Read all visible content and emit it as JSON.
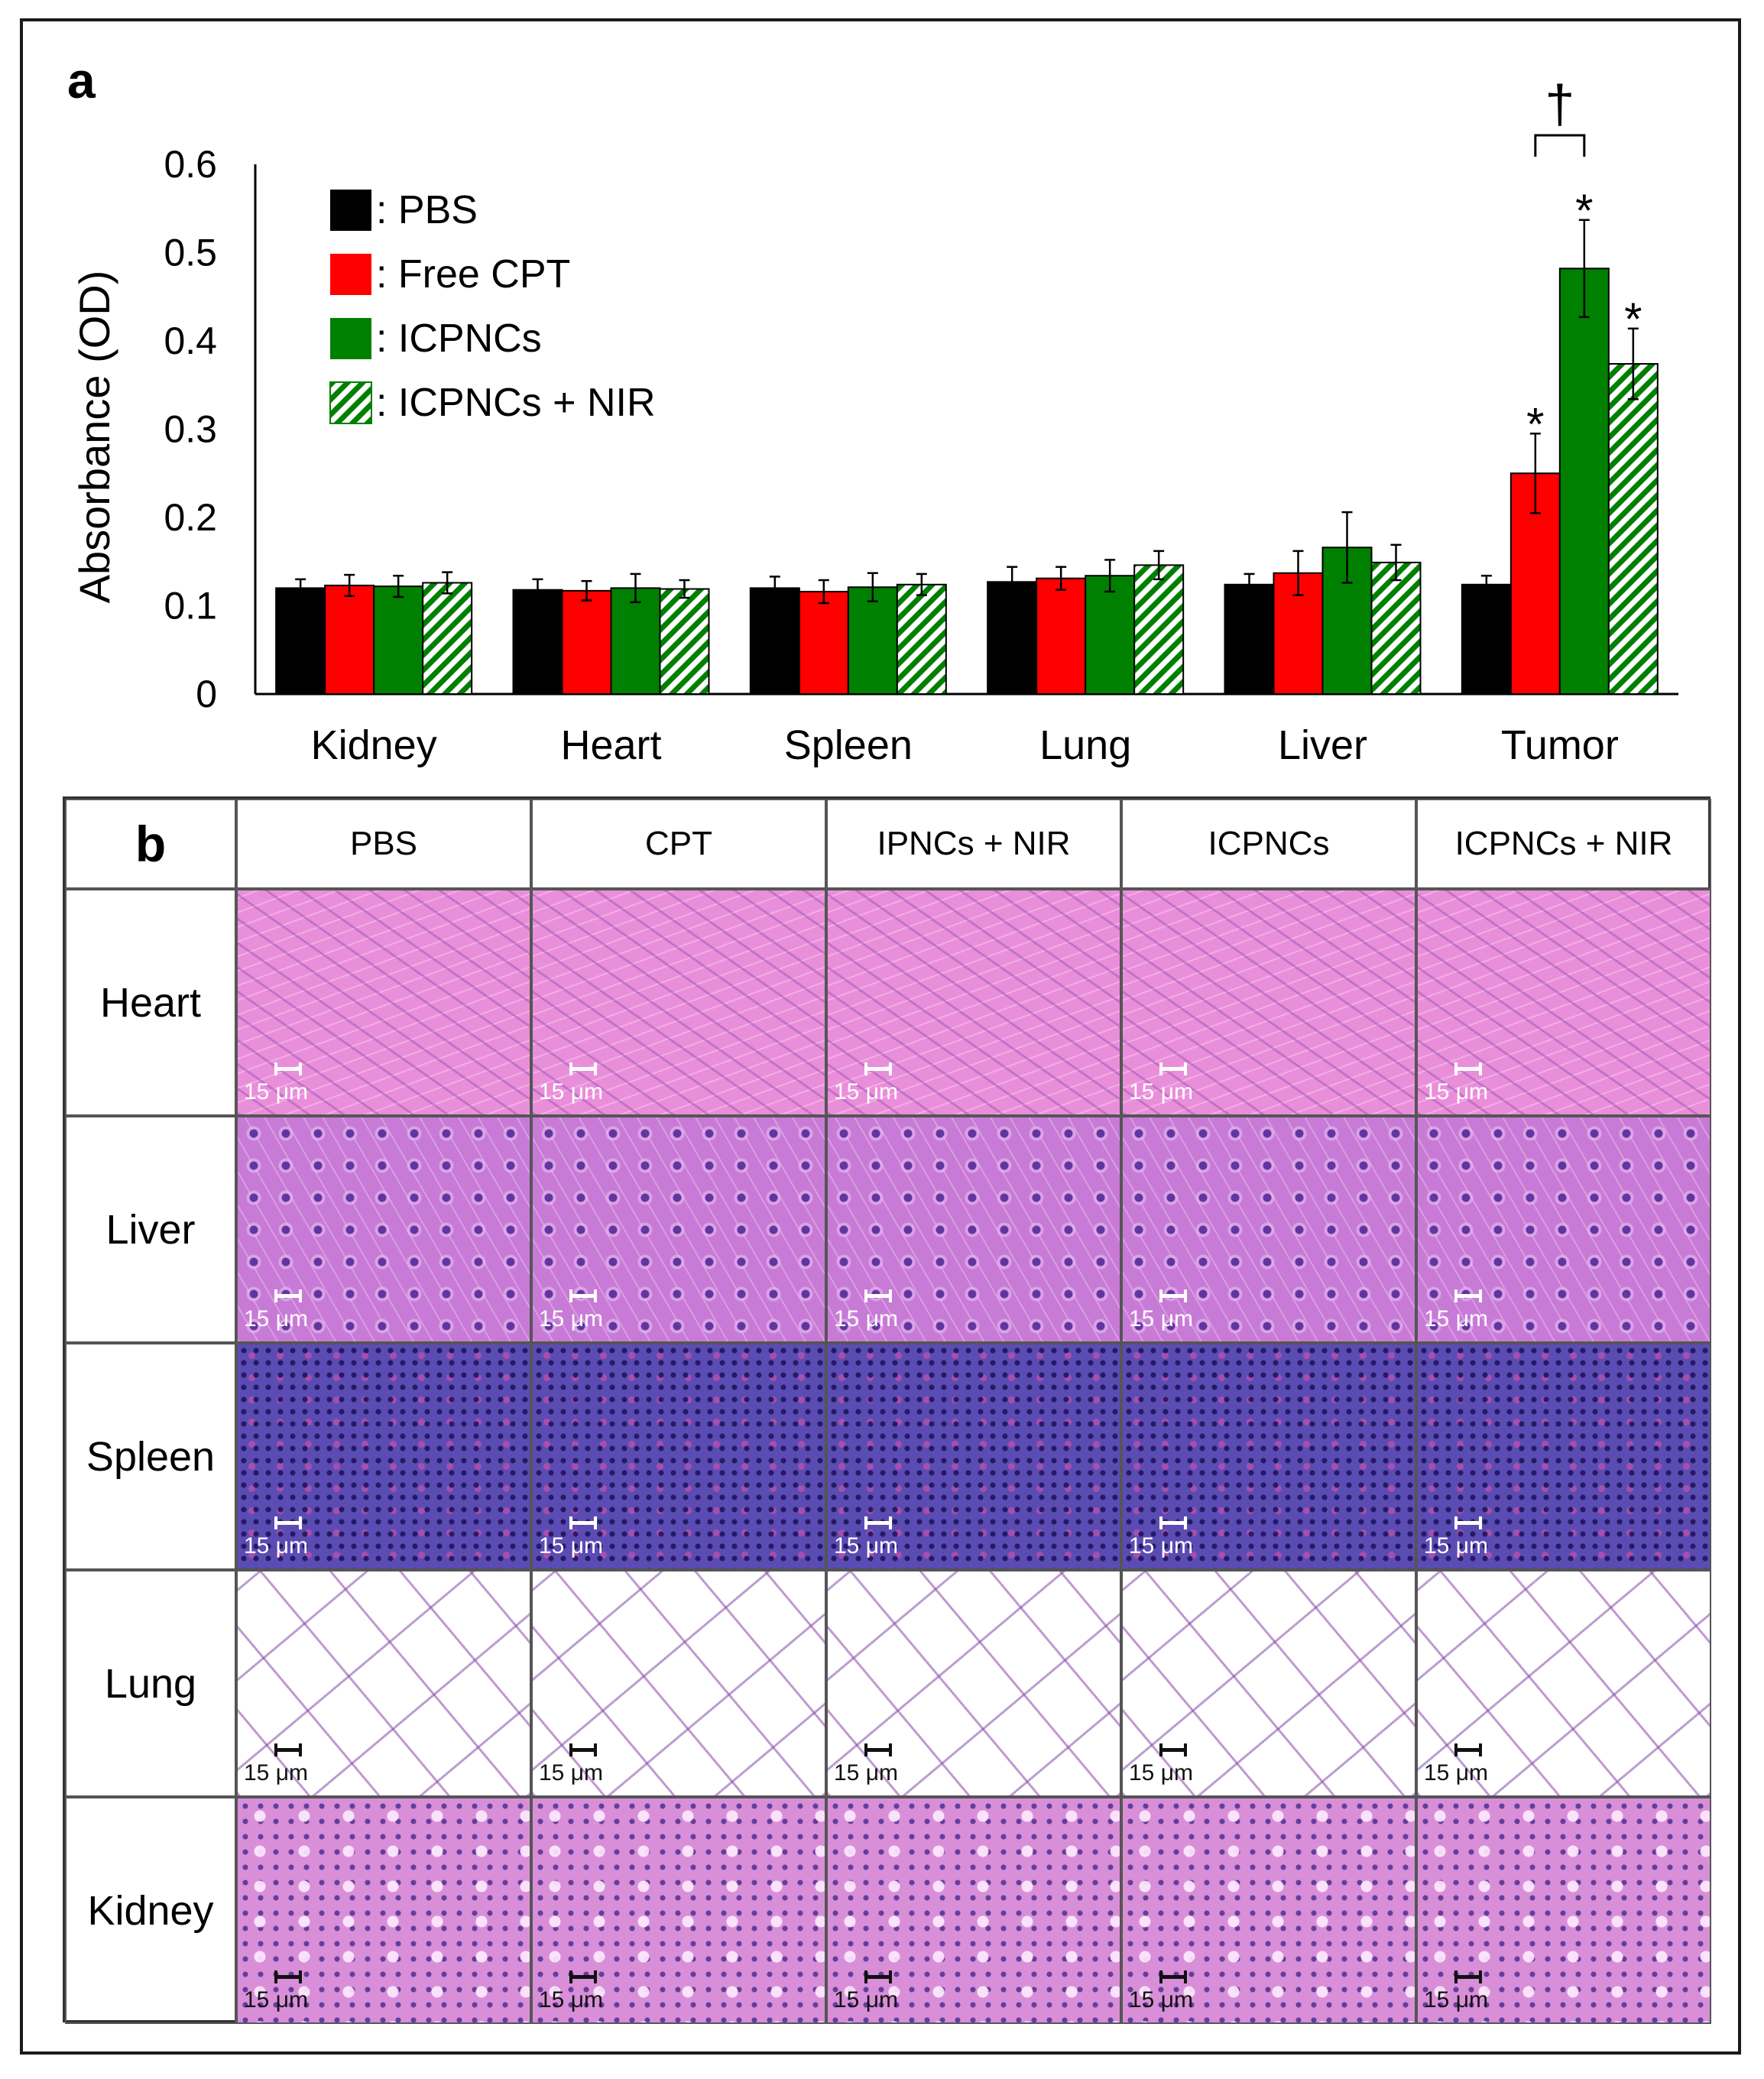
{
  "panels": {
    "a": "a",
    "b": "b"
  },
  "chart_data": {
    "type": "bar",
    "ylabel": "Absorbance (OD)",
    "ylim": [
      0,
      0.6
    ],
    "yticks": [
      "0",
      "0.1",
      "0.2",
      "0.3",
      "0.4",
      "0.5",
      "0.6"
    ],
    "categories": [
      "Kidney",
      "Heart",
      "Spleen",
      "Lung",
      "Liver",
      "Tumor"
    ],
    "legend_position": "top-left",
    "series": [
      {
        "name": ": PBS",
        "color": "#000000",
        "hatched": false,
        "values": [
          0.12,
          0.118,
          0.12,
          0.127,
          0.124,
          0.124
        ],
        "errors": [
          0.01,
          0.012,
          0.013,
          0.017,
          0.012,
          0.01
        ],
        "sig": [
          "",
          "",
          "",
          "",
          "",
          ""
        ]
      },
      {
        "name": ": Free CPT",
        "color": "#ff0000",
        "hatched": false,
        "values": [
          0.123,
          0.117,
          0.116,
          0.131,
          0.137,
          0.25
        ],
        "errors": [
          0.012,
          0.011,
          0.013,
          0.013,
          0.025,
          0.045
        ],
        "sig": [
          "",
          "",
          "",
          "",
          "",
          "*"
        ]
      },
      {
        "name": ": ICPNCs",
        "color": "#008000",
        "hatched": false,
        "values": [
          0.122,
          0.12,
          0.121,
          0.134,
          0.166,
          0.482
        ],
        "errors": [
          0.012,
          0.016,
          0.016,
          0.018,
          0.04,
          0.055
        ],
        "sig": [
          "",
          "",
          "",
          "",
          "",
          "*"
        ]
      },
      {
        "name": ": ICPNCs + NIR",
        "color": "#008000",
        "hatched": true,
        "values": [
          0.126,
          0.119,
          0.124,
          0.146,
          0.149,
          0.374
        ],
        "errors": [
          0.012,
          0.01,
          0.012,
          0.016,
          0.02,
          0.04
        ],
        "sig": [
          "",
          "",
          "",
          "",
          "",
          "*"
        ]
      }
    ],
    "annotations": [
      {
        "text": "†",
        "between": [
          "Free CPT",
          "ICPNCs"
        ],
        "category": "Tumor"
      }
    ]
  },
  "histology": {
    "corner": "b",
    "columns": [
      "PBS",
      "CPT",
      "IPNCs + NIR",
      "ICPNCs",
      "ICPNCs + NIR"
    ],
    "rows": [
      "Heart",
      "Liver",
      "Spleen",
      "Lung",
      "Kidney"
    ],
    "scale_label": "15 μm"
  }
}
